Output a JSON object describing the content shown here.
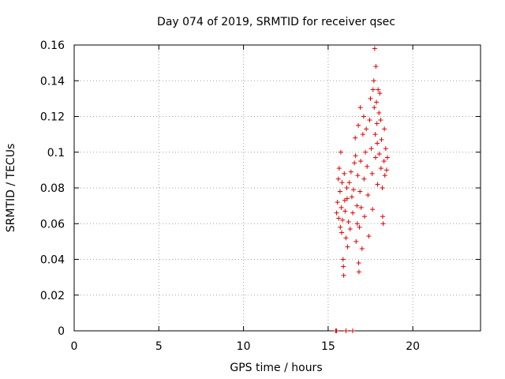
{
  "chart_data": {
    "type": "scatter",
    "title": "Day 074 of 2019, SRMTID for receiver qsec",
    "xlabel": "GPS time / hours",
    "ylabel": "SRMTID / TECUs",
    "xlim": [
      0,
      24
    ],
    "ylim": [
      0,
      0.16
    ],
    "xticks": [
      0,
      5,
      10,
      15,
      20
    ],
    "yticks": [
      0,
      0.02,
      0.04,
      0.06,
      0.08,
      0.1,
      0.12,
      0.14,
      0.16
    ],
    "xtick_labels": [
      "0",
      "5",
      "10",
      "15",
      "20"
    ],
    "ytick_labels": [
      "0",
      "0.02",
      "0.04",
      "0.06",
      "0.08",
      "0.1",
      "0.12",
      "0.14",
      "0.16"
    ],
    "grid": true,
    "marker": "+",
    "marker_color": "#e00000",
    "series": [
      {
        "name": "SRMTID",
        "points": [
          [
            15.45,
            0.0
          ],
          [
            15.5,
            0.0
          ],
          [
            16.05,
            0.0
          ],
          [
            16.45,
            0.0
          ],
          [
            15.5,
            0.066
          ],
          [
            15.55,
            0.072
          ],
          [
            15.6,
            0.085
          ],
          [
            15.62,
            0.063
          ],
          [
            15.65,
            0.091
          ],
          [
            15.7,
            0.078
          ],
          [
            15.72,
            0.058
          ],
          [
            15.75,
            0.1
          ],
          [
            15.78,
            0.069
          ],
          [
            15.8,
            0.055
          ],
          [
            15.82,
            0.083
          ],
          [
            15.85,
            0.062
          ],
          [
            15.88,
            0.04
          ],
          [
            15.9,
            0.036
          ],
          [
            15.92,
            0.031
          ],
          [
            15.95,
            0.088
          ],
          [
            15.98,
            0.073
          ],
          [
            16.0,
            0.067
          ],
          [
            16.05,
            0.052
          ],
          [
            16.1,
            0.08
          ],
          [
            16.12,
            0.074
          ],
          [
            16.15,
            0.047
          ],
          [
            16.2,
            0.061
          ],
          [
            16.25,
            0.083
          ],
          [
            16.3,
            0.057
          ],
          [
            16.35,
            0.089
          ],
          [
            16.4,
            0.075
          ],
          [
            16.45,
            0.066
          ],
          [
            16.5,
            0.079
          ],
          [
            16.55,
            0.094
          ],
          [
            16.6,
            0.108
          ],
          [
            16.62,
            0.098
          ],
          [
            16.65,
            0.05
          ],
          [
            16.7,
            0.07
          ],
          [
            16.72,
            0.06
          ],
          [
            16.75,
            0.087
          ],
          [
            16.78,
            0.115
          ],
          [
            16.8,
            0.038
          ],
          [
            16.82,
            0.033
          ],
          [
            16.85,
            0.058
          ],
          [
            16.88,
            0.078
          ],
          [
            16.9,
            0.125
          ],
          [
            16.92,
            0.095
          ],
          [
            16.95,
            0.069
          ],
          [
            17.0,
            0.046
          ],
          [
            17.05,
            0.11
          ],
          [
            17.1,
            0.12
          ],
          [
            17.12,
            0.085
          ],
          [
            17.15,
            0.064
          ],
          [
            17.2,
            0.1
          ],
          [
            17.25,
            0.113
          ],
          [
            17.3,
            0.092
          ],
          [
            17.35,
            0.076
          ],
          [
            17.4,
            0.053
          ],
          [
            17.45,
            0.118
          ],
          [
            17.5,
            0.13
          ],
          [
            17.55,
            0.102
          ],
          [
            17.6,
            0.088
          ],
          [
            17.62,
            0.068
          ],
          [
            17.65,
            0.135
          ],
          [
            17.7,
            0.14
          ],
          [
            17.72,
            0.125
          ],
          [
            17.75,
            0.158
          ],
          [
            17.78,
            0.11
          ],
          [
            17.8,
            0.097
          ],
          [
            17.82,
            0.148
          ],
          [
            17.85,
            0.128
          ],
          [
            17.88,
            0.116
          ],
          [
            17.9,
            0.105
          ],
          [
            17.92,
            0.082
          ],
          [
            17.95,
            0.135
          ],
          [
            18.0,
            0.122
          ],
          [
            18.02,
            0.099
          ],
          [
            18.05,
            0.133
          ],
          [
            18.1,
            0.118
          ],
          [
            18.12,
            0.091
          ],
          [
            18.15,
            0.107
          ],
          [
            18.2,
            0.08
          ],
          [
            18.22,
            0.064
          ],
          [
            18.25,
            0.06
          ],
          [
            18.3,
            0.095
          ],
          [
            18.32,
            0.113
          ],
          [
            18.35,
            0.087
          ],
          [
            18.4,
            0.102
          ],
          [
            18.45,
            0.09
          ],
          [
            18.5,
            0.097
          ]
        ]
      }
    ]
  }
}
